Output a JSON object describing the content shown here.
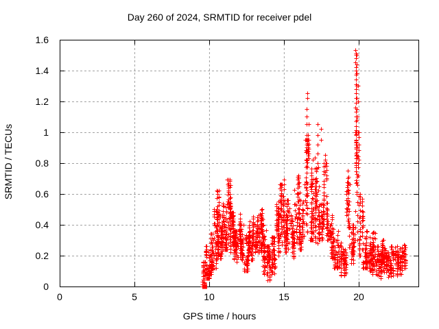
{
  "window": {
    "background": "#ffffff"
  },
  "colors": {
    "marker": "#ff0000",
    "grid": "#a0a0a0",
    "axis": "#000000",
    "text": "#000000",
    "background": "#ffffff"
  },
  "chart_data": {
    "type": "scatter",
    "title": "Day 260 of 2024, SRMTID for receiver pdel",
    "xlabel": "GPS time / hours",
    "ylabel": "SRMTID / TECUs",
    "xlim": [
      0,
      24
    ],
    "ylim": [
      0,
      1.6
    ],
    "xticks": [
      0,
      5,
      10,
      15,
      20
    ],
    "yticks": [
      0,
      0.2,
      0.4,
      0.6,
      0.8,
      1,
      1.2,
      1.4,
      1.6
    ],
    "grid": "dashed, both axes",
    "legend": "none",
    "marker": "plus",
    "marker_color": "#ff0000",
    "series_name": "SRMTID",
    "data_start_hour": 9.55,
    "data_end_hour": 23.15,
    "zero_marker": {
      "t": 9.7,
      "value": 0,
      "marker": "filled-square"
    },
    "envelope_note": "dense scatter band per time segment: [t_start_hr, t_end_hr, y_min_TECU, y_max_TECU, approx_point_count]",
    "envelope": [
      [
        9.55,
        9.8,
        0.0,
        0.16,
        30
      ],
      [
        9.8,
        10.05,
        0.05,
        0.3,
        46
      ],
      [
        10.05,
        10.3,
        0.08,
        0.34,
        50
      ],
      [
        10.3,
        10.55,
        0.12,
        0.5,
        55
      ],
      [
        10.55,
        10.75,
        0.2,
        0.62,
        48
      ],
      [
        10.75,
        10.95,
        0.18,
        0.46,
        45
      ],
      [
        10.95,
        11.2,
        0.24,
        0.56,
        50
      ],
      [
        11.2,
        11.45,
        0.28,
        0.69,
        55
      ],
      [
        11.45,
        11.65,
        0.22,
        0.48,
        40
      ],
      [
        11.65,
        12.0,
        0.16,
        0.36,
        60
      ],
      [
        12.0,
        12.35,
        0.17,
        0.42,
        60
      ],
      [
        12.35,
        12.65,
        0.1,
        0.33,
        52
      ],
      [
        12.65,
        12.95,
        0.17,
        0.42,
        52
      ],
      [
        12.95,
        13.3,
        0.22,
        0.48,
        58
      ],
      [
        13.3,
        13.6,
        0.22,
        0.5,
        52
      ],
      [
        13.6,
        13.85,
        0.08,
        0.4,
        42
      ],
      [
        13.85,
        14.15,
        0.04,
        0.26,
        48
      ],
      [
        14.15,
        14.45,
        0.08,
        0.32,
        48
      ],
      [
        14.45,
        14.75,
        0.2,
        0.55,
        52
      ],
      [
        14.75,
        15.1,
        0.27,
        0.66,
        58
      ],
      [
        15.1,
        15.45,
        0.22,
        0.56,
        58
      ],
      [
        15.45,
        15.7,
        0.18,
        0.46,
        42
      ],
      [
        15.7,
        16.1,
        0.28,
        0.71,
        62
      ],
      [
        16.1,
        16.35,
        0.24,
        0.56,
        42
      ],
      [
        16.35,
        16.7,
        0.35,
        0.95,
        58
      ],
      [
        16.7,
        17.0,
        0.3,
        0.82,
        52
      ],
      [
        17.0,
        17.35,
        0.28,
        0.86,
        52
      ],
      [
        17.35,
        17.6,
        0.3,
        0.72,
        42
      ],
      [
        17.6,
        18.0,
        0.3,
        0.8,
        58
      ],
      [
        18.0,
        18.35,
        0.18,
        0.46,
        48
      ],
      [
        18.35,
        18.65,
        0.12,
        0.36,
        46
      ],
      [
        18.65,
        19.2,
        0.07,
        0.3,
        64
      ],
      [
        19.2,
        19.45,
        0.25,
        0.7,
        38
      ],
      [
        19.45,
        19.75,
        0.15,
        0.4,
        42
      ],
      [
        19.75,
        20.05,
        0.3,
        1.0,
        48
      ],
      [
        20.05,
        20.3,
        0.2,
        0.6,
        42
      ],
      [
        20.3,
        20.6,
        0.12,
        0.36,
        48
      ],
      [
        20.6,
        20.9,
        0.1,
        0.32,
        48
      ],
      [
        20.9,
        21.2,
        0.08,
        0.35,
        52
      ],
      [
        21.2,
        21.55,
        0.05,
        0.26,
        52
      ],
      [
        21.55,
        21.85,
        0.08,
        0.3,
        48
      ],
      [
        21.85,
        22.2,
        0.05,
        0.22,
        52
      ],
      [
        22.2,
        22.6,
        0.07,
        0.26,
        52
      ],
      [
        22.6,
        22.95,
        0.08,
        0.25,
        48
      ],
      [
        22.95,
        23.15,
        0.12,
        0.3,
        26
      ]
    ],
    "spikes_note": "distinct tall columns of points: t in hours, ys in TECUs",
    "spikes": [
      {
        "t": 10.55,
        "ys": [
          0.62,
          0.6,
          0.57
        ]
      },
      {
        "t": 11.3,
        "ys": [
          0.69,
          0.67,
          0.65,
          0.62
        ]
      },
      {
        "t": 12.1,
        "ys": [
          0.47,
          0.44
        ]
      },
      {
        "t": 15.02,
        "ys": [
          0.69,
          0.66,
          0.63
        ]
      },
      {
        "t": 16.0,
        "ys": [
          0.72,
          0.7,
          0.67
        ]
      },
      {
        "t": 16.55,
        "ys": [
          1.25,
          1.22,
          1.15,
          1.1,
          1.05,
          0.98,
          0.92,
          0.87,
          0.82,
          0.78
        ]
      },
      {
        "t": 16.65,
        "ys": [
          1.05,
          0.98,
          0.9
        ]
      },
      {
        "t": 17.28,
        "ys": [
          1.05,
          0.98,
          0.92,
          0.86,
          0.8
        ]
      },
      {
        "t": 17.5,
        "ys": [
          1.02,
          0.95
        ]
      },
      {
        "t": 17.78,
        "ys": [
          0.85,
          0.82,
          0.78,
          0.74
        ]
      },
      {
        "t": 19.32,
        "ys": [
          0.75,
          0.71,
          0.67,
          0.62,
          0.56,
          0.5,
          0.44,
          0.38
        ]
      },
      {
        "t": 19.84,
        "ys": [
          1.53,
          1.51,
          1.5,
          1.48,
          1.45,
          1.42,
          1.4,
          1.37,
          1.34,
          1.31,
          1.28,
          1.25,
          1.22,
          1.19,
          1.16,
          1.13,
          1.1,
          1.07,
          1.04,
          1.01,
          0.98,
          0.95,
          0.92,
          0.89,
          0.86,
          0.83,
          0.8,
          0.77
        ]
      },
      {
        "t": 19.9,
        "ys": [
          1.5,
          1.44,
          1.38,
          1.3,
          1.22,
          1.15,
          1.08,
          1.0,
          0.92,
          0.85
        ]
      },
      {
        "t": 19.97,
        "ys": [
          1.3,
          1.2,
          1.1,
          1.0,
          0.9,
          0.8,
          0.72
        ]
      }
    ]
  }
}
